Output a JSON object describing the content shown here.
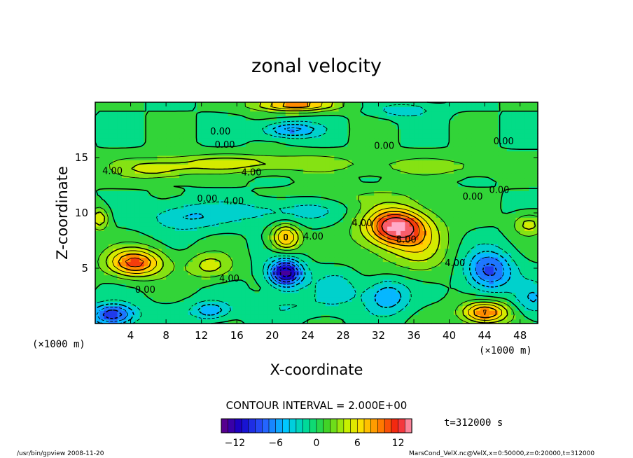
{
  "chart_data": {
    "type": "heatmap",
    "title": "zonal velocity",
    "xlabel": "X-coordinate",
    "ylabel": "Z-coordinate",
    "x_unit_left": "(×1000 m)",
    "x_unit_right": "(×1000 m)",
    "xlim": [
      0,
      50
    ],
    "ylim": [
      0,
      20
    ],
    "x_ticks": [
      4,
      8,
      12,
      16,
      20,
      24,
      28,
      32,
      36,
      40,
      44,
      48
    ],
    "y_ticks": [
      5,
      10,
      15
    ],
    "contour_interval_text": "CONTOUR INTERVAL = 2.000E+00",
    "time_text": "t=312000 s",
    "colorbar": {
      "min": -14,
      "max": 14,
      "tick_values": [
        -12,
        -6,
        0,
        6,
        12
      ],
      "tick_labels": [
        "−12",
        "−6",
        "0",
        "6",
        "12"
      ]
    },
    "contour_labels": [
      {
        "x": 0.8,
        "z": 13.5,
        "text": "4.00"
      },
      {
        "x": 13.0,
        "z": 17.1,
        "text": "0.00"
      },
      {
        "x": 13.5,
        "z": 15.9,
        "text": "0.00"
      },
      {
        "x": 16.5,
        "z": 13.4,
        "text": "4.00"
      },
      {
        "x": 11.5,
        "z": 11.0,
        "text": "0.00"
      },
      {
        "x": 14.5,
        "z": 10.8,
        "text": "4.00"
      },
      {
        "x": 31.5,
        "z": 15.8,
        "text": "0.00"
      },
      {
        "x": 45.0,
        "z": 16.2,
        "text": "0.00"
      },
      {
        "x": 41.5,
        "z": 11.2,
        "text": "0.00"
      },
      {
        "x": 44.5,
        "z": 11.8,
        "text": "0.00"
      },
      {
        "x": 29.0,
        "z": 8.8,
        "text": "4.00"
      },
      {
        "x": 34.0,
        "z": 7.3,
        "text": "8.00"
      },
      {
        "x": 23.5,
        "z": 7.6,
        "text": "4.00"
      },
      {
        "x": 39.5,
        "z": 5.2,
        "text": "4.00"
      },
      {
        "x": 14.0,
        "z": 3.8,
        "text": "4.00"
      },
      {
        "x": 4.5,
        "z": 2.8,
        "text": "0.00"
      }
    ],
    "features": [
      {
        "x": 34.0,
        "z": 8.8,
        "value": 12,
        "sx": 3.2,
        "sz": 1.6
      },
      {
        "x": 33.5,
        "z": 8.0,
        "value": 3,
        "sx": 5.5,
        "sz": 3.0
      },
      {
        "x": 37.0,
        "z": 6.8,
        "value": 3,
        "sx": 3.0,
        "sz": 2.5
      },
      {
        "x": 4.5,
        "z": 5.5,
        "value": 11,
        "sx": 3.2,
        "sz": 1.3
      },
      {
        "x": 13.0,
        "z": 5.2,
        "value": 5,
        "sx": 2.6,
        "sz": 1.2
      },
      {
        "x": 21.5,
        "z": 7.8,
        "value": 9,
        "sx": 1.6,
        "sz": 1.2
      },
      {
        "x": 21.5,
        "z": 4.6,
        "value": -14,
        "sx": 1.9,
        "sz": 1.2
      },
      {
        "x": 20.5,
        "z": 10.2,
        "value": -3,
        "sx": 8.0,
        "sz": 1.3
      },
      {
        "x": 10.0,
        "z": 9.6,
        "value": -4,
        "sx": 4.0,
        "sz": 1.2
      },
      {
        "x": 22.0,
        "z": 1.6,
        "value": -2,
        "sx": 5.0,
        "sz": 1.1
      },
      {
        "x": 33.0,
        "z": 2.5,
        "value": -6,
        "sx": 2.5,
        "sz": 1.6
      },
      {
        "x": 27.5,
        "z": 3.2,
        "value": -3,
        "sx": 2.5,
        "sz": 1.6
      },
      {
        "x": 44.5,
        "z": 4.8,
        "value": -9,
        "sx": 2.6,
        "sz": 1.8
      },
      {
        "x": 49.5,
        "z": 2.2,
        "value": -4,
        "sx": 2.0,
        "sz": 1.5
      },
      {
        "x": 44.0,
        "z": 1.0,
        "value": 11,
        "sx": 2.6,
        "sz": 1.0
      },
      {
        "x": 2.0,
        "z": 0.8,
        "value": -10,
        "sx": 2.6,
        "sz": 1.0
      },
      {
        "x": 13.0,
        "z": 1.2,
        "value": -6,
        "sx": 2.2,
        "sz": 0.8
      },
      {
        "x": 16.5,
        "z": 14.5,
        "value": 5,
        "sx": 12.0,
        "sz": 0.8
      },
      {
        "x": 7.0,
        "z": 13.8,
        "value": 4,
        "sx": 4.0,
        "sz": 0.8
      },
      {
        "x": 39.0,
        "z": 14.2,
        "value": 3,
        "sx": 8.0,
        "sz": 0.8
      },
      {
        "x": 22.0,
        "z": 17.5,
        "value": -7,
        "sx": 3.2,
        "sz": 0.7
      },
      {
        "x": 22.5,
        "z": 19.8,
        "value": 10,
        "sx": 4.5,
        "sz": 0.6
      },
      {
        "x": 35.0,
        "z": 19.3,
        "value": -4,
        "sx": 3.0,
        "sz": 0.6
      },
      {
        "x": 49.0,
        "z": 9.0,
        "value": 5,
        "sx": 1.8,
        "sz": 1.0
      },
      {
        "x": 0.5,
        "z": 9.5,
        "value": 6,
        "sx": 1.0,
        "sz": 1.0
      },
      {
        "x": 28.0,
        "z": 11.5,
        "value": 1.5,
        "sx": 10.0,
        "sz": 0.8
      }
    ]
  },
  "footer": {
    "left": "/usr/bin/gpview   2008-11-20",
    "right": "MarsCond_VelX.nc@VelX,x=0:50000,z=0:20000,t=312000"
  }
}
